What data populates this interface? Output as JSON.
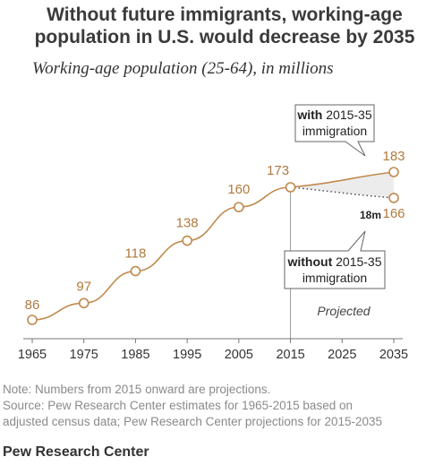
{
  "title_line1": "Without future immigrants, working-age",
  "title_line2": "population in U.S. would decrease by 2035",
  "subtitle": "Working-age population (25-64), in millions",
  "notes": {
    "line1": "Note: Numbers from 2015 onward are projections.",
    "line2": "Source: Pew Research Center estimates for 1965-2015 based on",
    "line3": "adjusted census data; Pew Research Center projections for 2015-2035"
  },
  "brand": "Pew Research Center",
  "colors": {
    "line": "#c08a4e",
    "label": "#b07a3e",
    "gap_fill": "#ececec",
    "axis": "#777777",
    "text": "#333333"
  },
  "chart_data": {
    "type": "line",
    "x_ticks": [
      1965,
      1975,
      1985,
      1995,
      2005,
      2015,
      2025,
      2035
    ],
    "xlim": [
      1965,
      2035
    ],
    "historical": {
      "x": [
        1965,
        1975,
        1985,
        1995,
        2005,
        2015
      ],
      "values": [
        86,
        97,
        118,
        138,
        160,
        173
      ]
    },
    "with_immigration": {
      "x": [
        2015,
        2035
      ],
      "values": [
        173,
        183
      ]
    },
    "without_immigration": {
      "x": [
        2015,
        2035
      ],
      "values": [
        173,
        166
      ]
    },
    "point_labels": [
      "86",
      "97",
      "118",
      "138",
      "160",
      "173",
      "183",
      "166"
    ],
    "difference_label": "18m",
    "projected_label": "Projected",
    "callout_with": {
      "bold": "with",
      "rest": " 2015-35",
      "line2": "immigration"
    },
    "callout_without": {
      "bold": "without",
      "rest": " 2015-35",
      "line2": "immigration"
    }
  }
}
